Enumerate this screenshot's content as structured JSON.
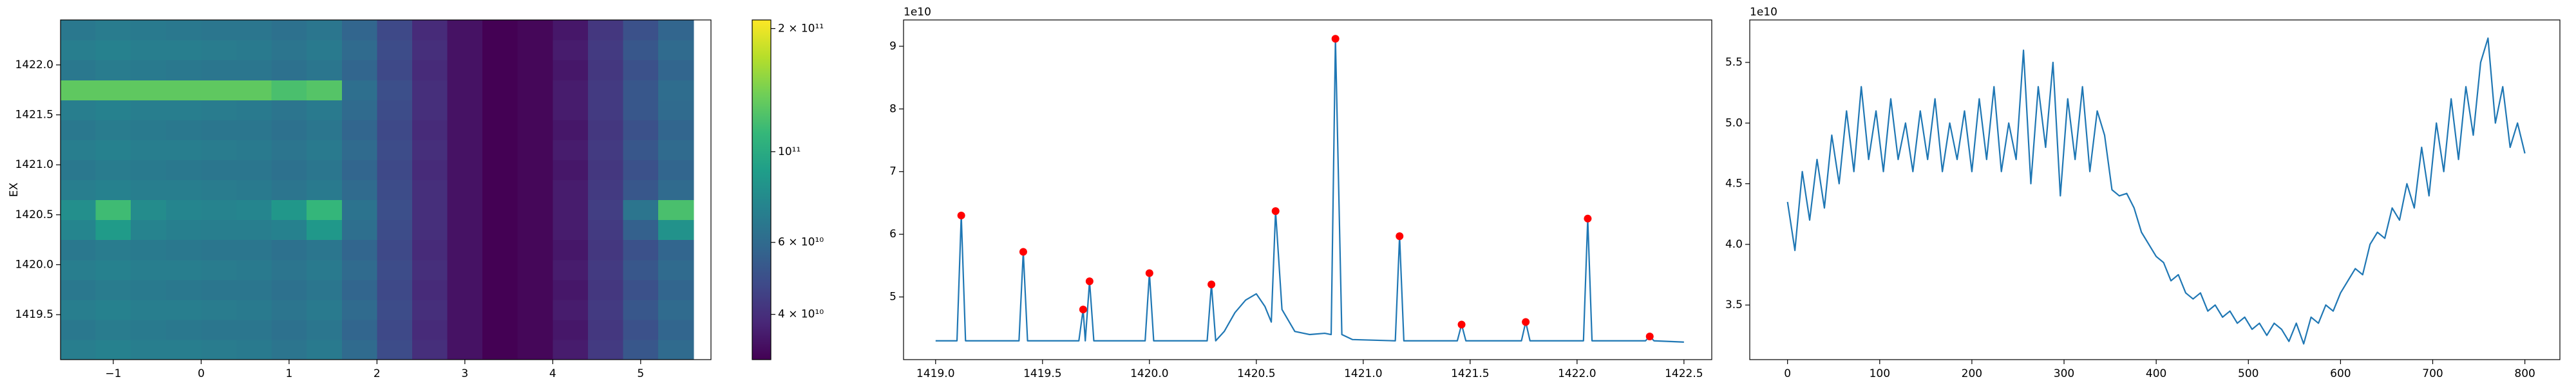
{
  "chart_data": [
    {
      "type": "heatmap",
      "ylabel": "EX",
      "colormap": "viridis",
      "xlim": [
        -1.6,
        5.8
      ],
      "ylim": [
        1419.05,
        1422.45
      ],
      "xticks": [
        {
          "value": -1,
          "label": "−1"
        },
        0,
        1,
        2,
        3,
        4,
        5
      ],
      "yticks": [
        {
          "value": 1419.5,
          "label": "1419.5"
        },
        {
          "value": 1420.0,
          "label": "1420.0"
        },
        {
          "value": 1420.5,
          "label": "1420.5"
        },
        {
          "value": 1421.0,
          "label": "1421.0"
        },
        {
          "value": 1421.5,
          "label": "1421.5"
        },
        {
          "value": 1422.0,
          "label": "1422.0"
        }
      ],
      "x": [
        -1.4,
        -1.0,
        -0.6,
        -0.2,
        0.2,
        0.6,
        1.0,
        1.4,
        1.8,
        2.2,
        2.6,
        3.0,
        3.4,
        3.8,
        4.2,
        4.6,
        5.0,
        5.4
      ],
      "y": [
        1419.15,
        1419.35,
        1419.55,
        1419.75,
        1419.95,
        1420.15,
        1420.35,
        1420.55,
        1420.75,
        1420.95,
        1421.15,
        1421.35,
        1421.55,
        1421.75,
        1421.95,
        1422.15,
        1422.35
      ],
      "z": [
        [
          70000000000.0,
          72000000000.0,
          70000000000.0,
          70000000000.0,
          69000000000.0,
          68000000000.0,
          65000000000.0,
          68000000000.0,
          60000000000.0,
          48000000000.0,
          40000000000.0,
          34000000000.0,
          31000000000.0,
          32000000000.0,
          36000000000.0,
          43000000000.0,
          52000000000.0,
          60000000000.0
        ],
        [
          67000000000.0,
          69000000000.0,
          68000000000.0,
          67000000000.0,
          66000000000.0,
          66000000000.0,
          63000000000.0,
          66000000000.0,
          58000000000.0,
          47000000000.0,
          39000000000.0,
          34000000000.0,
          31000000000.0,
          32000000000.0,
          35000000000.0,
          42000000000.0,
          50000000000.0,
          58000000000.0
        ],
        [
          70000000000.0,
          72000000000.0,
          70000000000.0,
          70000000000.0,
          69000000000.0,
          68000000000.0,
          65000000000.0,
          68000000000.0,
          60000000000.0,
          48000000000.0,
          40000000000.0,
          34000000000.0,
          31000000000.0,
          32000000000.0,
          36000000000.0,
          43000000000.0,
          52000000000.0,
          60000000000.0
        ],
        [
          67000000000.0,
          69000000000.0,
          68000000000.0,
          67000000000.0,
          66000000000.0,
          66000000000.0,
          63000000000.0,
          66000000000.0,
          58000000000.0,
          47000000000.0,
          39000000000.0,
          34000000000.0,
          31000000000.0,
          32000000000.0,
          35000000000.0,
          42000000000.0,
          50000000000.0,
          58000000000.0
        ],
        [
          70000000000.0,
          72000000000.0,
          70000000000.0,
          70000000000.0,
          69000000000.0,
          68000000000.0,
          65000000000.0,
          68000000000.0,
          60000000000.0,
          48000000000.0,
          40000000000.0,
          34000000000.0,
          31000000000.0,
          32000000000.0,
          36000000000.0,
          43000000000.0,
          52000000000.0,
          60000000000.0
        ],
        [
          67000000000.0,
          69000000000.0,
          68000000000.0,
          67000000000.0,
          66000000000.0,
          66000000000.0,
          63000000000.0,
          66000000000.0,
          58000000000.0,
          47000000000.0,
          39000000000.0,
          34000000000.0,
          31000000000.0,
          32000000000.0,
          35000000000.0,
          42000000000.0,
          50000000000.0,
          58000000000.0
        ],
        [
          74000000000.0,
          88000000000.0,
          73000000000.0,
          71000000000.0,
          70000000000.0,
          70000000000.0,
          72000000000.0,
          86000000000.0,
          62000000000.0,
          48000000000.0,
          40000000000.0,
          34000000000.0,
          31000000000.0,
          32000000000.0,
          36000000000.0,
          43000000000.0,
          56000000000.0,
          82000000000.0
        ],
        [
          80000000000.0,
          115000000000.0,
          78000000000.0,
          74000000000.0,
          73000000000.0,
          74000000000.0,
          85000000000.0,
          110000000000.0,
          64000000000.0,
          49000000000.0,
          40000000000.0,
          34000000000.0,
          31000000000.0,
          32000000000.0,
          36000000000.0,
          44000000000.0,
          65000000000.0,
          120000000000.0
        ],
        [
          70000000000.0,
          72000000000.0,
          70000000000.0,
          70000000000.0,
          69000000000.0,
          68000000000.0,
          65000000000.0,
          68000000000.0,
          60000000000.0,
          48000000000.0,
          40000000000.0,
          34000000000.0,
          31000000000.0,
          32000000000.0,
          36000000000.0,
          43000000000.0,
          52000000000.0,
          60000000000.0
        ],
        [
          67000000000.0,
          69000000000.0,
          68000000000.0,
          67000000000.0,
          66000000000.0,
          66000000000.0,
          63000000000.0,
          66000000000.0,
          58000000000.0,
          47000000000.0,
          39000000000.0,
          34000000000.0,
          31000000000.0,
          32000000000.0,
          35000000000.0,
          42000000000.0,
          50000000000.0,
          58000000000.0
        ],
        [
          70000000000.0,
          72000000000.0,
          70000000000.0,
          70000000000.0,
          69000000000.0,
          68000000000.0,
          65000000000.0,
          68000000000.0,
          60000000000.0,
          48000000000.0,
          40000000000.0,
          34000000000.0,
          31000000000.0,
          32000000000.0,
          36000000000.0,
          43000000000.0,
          52000000000.0,
          60000000000.0
        ],
        [
          67000000000.0,
          69000000000.0,
          68000000000.0,
          67000000000.0,
          66000000000.0,
          66000000000.0,
          63000000000.0,
          66000000000.0,
          58000000000.0,
          47000000000.0,
          39000000000.0,
          34000000000.0,
          31000000000.0,
          32000000000.0,
          35000000000.0,
          42000000000.0,
          50000000000.0,
          58000000000.0
        ],
        [
          70000000000.0,
          72000000000.0,
          70000000000.0,
          70000000000.0,
          69000000000.0,
          68000000000.0,
          65000000000.0,
          68000000000.0,
          60000000000.0,
          48000000000.0,
          40000000000.0,
          34000000000.0,
          31000000000.0,
          32000000000.0,
          36000000000.0,
          43000000000.0,
          52000000000.0,
          60000000000.0
        ],
        [
          130000000000.0,
          130000000000.0,
          130000000000.0,
          130000000000.0,
          130000000000.0,
          130000000000.0,
          120000000000.0,
          125000000000.0,
          62000000000.0,
          49000000000.0,
          40000000000.0,
          34000000000.0,
          31000000000.0,
          32000000000.0,
          36000000000.0,
          43000000000.0,
          52000000000.0,
          61000000000.0
        ],
        [
          67000000000.0,
          69000000000.0,
          68000000000.0,
          67000000000.0,
          66000000000.0,
          66000000000.0,
          63000000000.0,
          66000000000.0,
          58000000000.0,
          47000000000.0,
          39000000000.0,
          34000000000.0,
          31000000000.0,
          32000000000.0,
          35000000000.0,
          42000000000.0,
          50000000000.0,
          58000000000.0
        ],
        [
          70000000000.0,
          72000000000.0,
          70000000000.0,
          70000000000.0,
          69000000000.0,
          68000000000.0,
          65000000000.0,
          68000000000.0,
          60000000000.0,
          48000000000.0,
          40000000000.0,
          34000000000.0,
          31000000000.0,
          32000000000.0,
          36000000000.0,
          43000000000.0,
          52000000000.0,
          60000000000.0
        ],
        [
          67000000000.0,
          69000000000.0,
          68000000000.0,
          67000000000.0,
          66000000000.0,
          66000000000.0,
          63000000000.0,
          66000000000.0,
          58000000000.0,
          47000000000.0,
          39000000000.0,
          34000000000.0,
          31000000000.0,
          32000000000.0,
          35000000000.0,
          42000000000.0,
          50000000000.0,
          58000000000.0
        ]
      ],
      "colorbar": {
        "scale": "log",
        "lim": [
          31000000000.0,
          210000000000.0
        ],
        "ticks": [
          {
            "value": 40000000000.0,
            "label": "4 × 10¹⁰"
          },
          {
            "value": 60000000000.0,
            "label": "6 × 10¹⁰"
          },
          {
            "value": 100000000000.0,
            "label": "10¹¹"
          },
          {
            "value": 200000000000.0,
            "label": "2 × 10¹¹"
          }
        ]
      }
    },
    {
      "type": "line",
      "offset_label": "1e10",
      "xlim": [
        1418.85,
        1422.63
      ],
      "ylim": [
        40000000000.0,
        94200000000.0
      ],
      "xticks": [
        {
          "value": 1419.0,
          "label": "1419.0"
        },
        {
          "value": 1419.5,
          "label": "1419.5"
        },
        {
          "value": 1420.0,
          "label": "1420.0"
        },
        {
          "value": 1420.5,
          "label": "1420.5"
        },
        {
          "value": 1421.0,
          "label": "1421.0"
        },
        {
          "value": 1421.5,
          "label": "1421.5"
        },
        {
          "value": 1422.0,
          "label": "1422.0"
        },
        {
          "value": 1422.5,
          "label": "1422.5"
        }
      ],
      "yticks": [
        {
          "value": 50000000000.0,
          "label": "5"
        },
        {
          "value": 60000000000.0,
          "label": "6"
        },
        {
          "value": 70000000000.0,
          "label": "7"
        },
        {
          "value": 80000000000.0,
          "label": "8"
        },
        {
          "value": 90000000000.0,
          "label": "9"
        }
      ],
      "series": [
        {
          "type": "line",
          "color": "#1f77b4",
          "x": [
            1419.0,
            1419.1,
            1419.12,
            1419.14,
            1419.39,
            1419.41,
            1419.43,
            1419.67,
            1419.69,
            1419.7,
            1419.72,
            1419.74,
            1419.98,
            1420.0,
            1420.02,
            1420.27,
            1420.29,
            1420.31,
            1420.35,
            1420.4,
            1420.45,
            1420.5,
            1420.54,
            1420.57,
            1420.59,
            1420.62,
            1420.68,
            1420.75,
            1420.82,
            1420.85,
            1420.87,
            1420.9,
            1420.95,
            1421.15,
            1421.17,
            1421.19,
            1421.44,
            1421.46,
            1421.48,
            1421.74,
            1421.76,
            1421.78,
            1422.03,
            1422.05,
            1422.07,
            1422.32,
            1422.34,
            1422.36,
            1422.5
          ],
          "values": [
            43000000000.0,
            43000000000.0,
            63000000000.0,
            43000000000.0,
            43000000000.0,
            57200000000.0,
            43000000000.0,
            43000000000.0,
            48000000000.0,
            43000000000.0,
            52500000000.0,
            43000000000.0,
            43000000000.0,
            53800000000.0,
            43000000000.0,
            43000000000.0,
            52000000000.0,
            43000000000.0,
            44500000000.0,
            47500000000.0,
            49500000000.0,
            50500000000.0,
            48500000000.0,
            46000000000.0,
            63700000000.0,
            48000000000.0,
            44500000000.0,
            44000000000.0,
            44200000000.0,
            44000000000.0,
            91200000000.0,
            44000000000.0,
            43200000000.0,
            43000000000.0,
            59700000000.0,
            43000000000.0,
            43000000000.0,
            45600000000.0,
            43000000000.0,
            43000000000.0,
            46000000000.0,
            43000000000.0,
            43000000000.0,
            62500000000.0,
            43000000000.0,
            43000000000.0,
            43700000000.0,
            43000000000.0,
            42800000000.0
          ]
        },
        {
          "type": "scatter",
          "color": "#ff0000",
          "x": [
            1419.12,
            1419.41,
            1419.69,
            1419.72,
            1420.0,
            1420.29,
            1420.59,
            1420.87,
            1421.17,
            1421.46,
            1421.76,
            1422.05,
            1422.34
          ],
          "values": [
            63000000000.0,
            57200000000.0,
            48000000000.0,
            52500000000.0,
            53800000000.0,
            52000000000.0,
            63700000000.0,
            91200000000.0,
            59700000000.0,
            45600000000.0,
            46000000000.0,
            62500000000.0,
            43700000000.0
          ]
        }
      ]
    },
    {
      "type": "line",
      "offset_label": "1e10",
      "xlim": [
        -41,
        838
      ],
      "ylim": [
        30500000000.0,
        58500000000.0
      ],
      "xticks": [
        0,
        100,
        200,
        300,
        400,
        500,
        600,
        700,
        800
      ],
      "yticks": [
        {
          "value": 35000000000.0,
          "label": "3.5"
        },
        {
          "value": 40000000000.0,
          "label": "4.0"
        },
        {
          "value": 45000000000.0,
          "label": "4.5"
        },
        {
          "value": 50000000000.0,
          "label": "5.0"
        },
        {
          "value": 55000000000.0,
          "label": "5.5"
        }
      ],
      "series": [
        {
          "type": "line",
          "color": "#1f77b4",
          "x": [
            0,
            8,
            16,
            24,
            32,
            40,
            48,
            56,
            64,
            72,
            80,
            88,
            96,
            104,
            112,
            120,
            128,
            136,
            144,
            152,
            160,
            168,
            176,
            184,
            192,
            200,
            208,
            216,
            224,
            232,
            240,
            248,
            256,
            264,
            272,
            280,
            288,
            296,
            304,
            312,
            320,
            328,
            336,
            344,
            352,
            360,
            368,
            376,
            384,
            392,
            400,
            408,
            416,
            424,
            432,
            440,
            448,
            456,
            464,
            472,
            480,
            488,
            496,
            504,
            512,
            520,
            528,
            536,
            544,
            552,
            560,
            568,
            576,
            584,
            592,
            600,
            608,
            616,
            624,
            632,
            640,
            648,
            656,
            664,
            672,
            680,
            688,
            696,
            704,
            712,
            720,
            728,
            736,
            744,
            752,
            760,
            768,
            776,
            784,
            792,
            800
          ],
          "values": [
            43500000000.0,
            39500000000.0,
            46000000000.0,
            42000000000.0,
            47000000000.0,
            43000000000.0,
            49000000000.0,
            45000000000.0,
            51000000000.0,
            46000000000.0,
            53000000000.0,
            47000000000.0,
            51000000000.0,
            46000000000.0,
            52000000000.0,
            47000000000.0,
            50000000000.0,
            46000000000.0,
            51000000000.0,
            47000000000.0,
            52000000000.0,
            46000000000.0,
            50000000000.0,
            47000000000.0,
            51000000000.0,
            46000000000.0,
            52000000000.0,
            47000000000.0,
            53000000000.0,
            46000000000.0,
            50000000000.0,
            47000000000.0,
            56000000000.0,
            45000000000.0,
            53000000000.0,
            48000000000.0,
            55000000000.0,
            44000000000.0,
            52000000000.0,
            47000000000.0,
            53000000000.0,
            46000000000.0,
            51000000000.0,
            49000000000.0,
            44500000000.0,
            44000000000.0,
            44200000000.0,
            43000000000.0,
            41000000000.0,
            40000000000.0,
            39000000000.0,
            38500000000.0,
            37000000000.0,
            37500000000.0,
            36000000000.0,
            35500000000.0,
            36000000000.0,
            34500000000.0,
            35000000000.0,
            34000000000.0,
            34500000000.0,
            33500000000.0,
            34000000000.0,
            33000000000.0,
            33500000000.0,
            32500000000.0,
            33500000000.0,
            33000000000.0,
            32000000000.0,
            33500000000.0,
            31800000000.0,
            34000000000.0,
            33500000000.0,
            35000000000.0,
            34500000000.0,
            36000000000.0,
            37000000000.0,
            38000000000.0,
            37500000000.0,
            40000000000.0,
            41000000000.0,
            40500000000.0,
            43000000000.0,
            42000000000.0,
            45000000000.0,
            43000000000.0,
            48000000000.0,
            44000000000.0,
            50000000000.0,
            46000000000.0,
            52000000000.0,
            47000000000.0,
            53000000000.0,
            49000000000.0,
            55000000000.0,
            57000000000.0,
            50000000000.0,
            53000000000.0,
            48000000000.0,
            50000000000.0,
            47500000000.0
          ]
        }
      ]
    }
  ]
}
